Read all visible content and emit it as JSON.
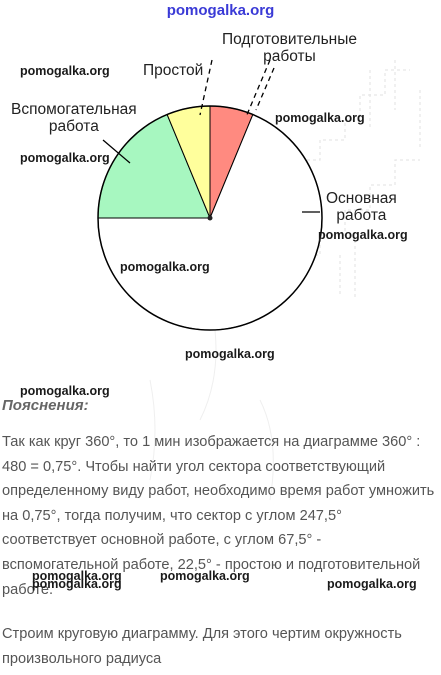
{
  "watermarks": {
    "top": "pomogalka.org",
    "w1": "pomogalka.org",
    "w2": "pomogalka.org",
    "w3": "pomogalka.org",
    "w4": "pomogalka.org",
    "w5": "pomogalka.org",
    "w6": "pomogalka.org",
    "w7": "pomogalka.org",
    "w8": "pomogalka.org",
    "w9": "pomogalka.org",
    "w10": "pomogalka.org",
    "w11": "pomogalka.org"
  },
  "chart_data": {
    "type": "pie",
    "total_degrees": 360,
    "start_angle_deg": 0,
    "direction": "clockwise from 12 o'clock",
    "slices": [
      {
        "label_lines": [
          "Подготовительные",
          "работы"
        ],
        "degrees": 22.5,
        "color": "#ff8a80"
      },
      {
        "label_lines": [
          "Основная",
          "работа"
        ],
        "degrees": 247.5,
        "color": "#ffffff"
      },
      {
        "label_lines": [
          "Вспомогательная",
          "работа"
        ],
        "degrees": 67.5,
        "color": "#a7f7c0"
      },
      {
        "label_lines": [
          "Простой"
        ],
        "degrees": 22.5,
        "color": "#ffff9c"
      }
    ]
  },
  "explanation": {
    "heading": "Пояснения:",
    "p1": "Так как круг 360°, то 1 мин изображается на диаграмме 360° : 480 = 0,75°. Чтобы найти угол сектора соответствующий определенному виду работ, необходимо время работ умножить на 0,75°, тогда получим, что сектор с углом 247,5° соответствует основной работе, с углом 67,5° - вспомогательной работе, 22,5° - простою и подготовительной работе.",
    "p2": "Строим круговую диаграмму. Для этого чертим окружность произвольного радиуса"
  }
}
